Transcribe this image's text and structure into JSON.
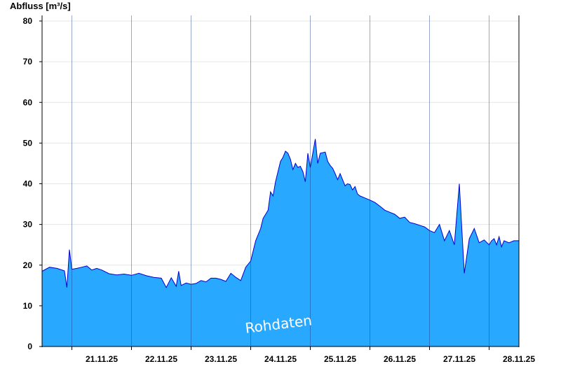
{
  "chart_data": {
    "type": "area",
    "ylabel": "Abfluss [m³/s]",
    "ylim": [
      0,
      80
    ],
    "y_ticks": [
      0,
      10,
      20,
      30,
      40,
      50,
      60,
      70,
      80
    ],
    "x_tick_labels": [
      "21.11.25",
      "22.11.25",
      "23.11.25",
      "24.11.25",
      "25.11.25",
      "26.11.25",
      "27.11.25",
      "28.11.25"
    ],
    "x_start": "20.11.25 12:00",
    "x_end": "28.11.25 12:00",
    "grid": "horizontal",
    "watermark": "Rohdaten",
    "colors": {
      "fill": "#29a8ff",
      "line": "#0000d0",
      "grid": "#e6e6e6",
      "day_line": "#1a3a8a"
    },
    "series": [
      {
        "x_hours_from_start": [
          0,
          3,
          6,
          9,
          10,
          11,
          12,
          14,
          16,
          18,
          20,
          22,
          24,
          27,
          30,
          33,
          36,
          39,
          42,
          45,
          48,
          50,
          52,
          54,
          55,
          56,
          58,
          60,
          62,
          64,
          66,
          68,
          70,
          72,
          74,
          76,
          78,
          80,
          82,
          84,
          86,
          88,
          89,
          90,
          91,
          92,
          93,
          94,
          96,
          97,
          98,
          99,
          100,
          101,
          102,
          103,
          104,
          105,
          106,
          107,
          108,
          110,
          111,
          112,
          114,
          115,
          116,
          117,
          118,
          119,
          120,
          122,
          123,
          124,
          125,
          126,
          127,
          128,
          130,
          132,
          134,
          136,
          138,
          140,
          142,
          144,
          146,
          148,
          150,
          152,
          154,
          156,
          158,
          160,
          162,
          164,
          166,
          168,
          170,
          172,
          174,
          176,
          178,
          180,
          181,
          182,
          183,
          184,
          185,
          186,
          188,
          190,
          192
        ],
        "values": [
          18.5,
          19.5,
          19.2,
          18.6,
          14.5,
          23.8,
          19.0,
          19.2,
          19.5,
          19.8,
          18.8,
          19.2,
          18.8,
          17.9,
          17.6,
          17.8,
          17.5,
          18.0,
          17.4,
          17.0,
          16.8,
          14.5,
          16.9,
          14.8,
          18.5,
          15.0,
          15.6,
          15.3,
          15.5,
          16.2,
          15.9,
          16.8,
          16.8,
          16.5,
          16.0,
          18.0,
          17.0,
          16.2,
          19.5,
          21.0,
          26.0,
          29.0,
          31.5,
          32.5,
          33.5,
          38.0,
          37.0,
          40.5,
          45.5,
          46.5,
          48.0,
          47.5,
          46.0,
          43.5,
          45.0,
          44.0,
          44.3,
          43.0,
          40.5,
          47.5,
          44.0,
          51.0,
          45.0,
          47.5,
          47.8,
          45.5,
          44.5,
          43.8,
          42.5,
          41.0,
          42.5,
          39.5,
          40.0,
          39.8,
          38.5,
          39.3,
          37.5,
          37.0,
          36.5,
          36.0,
          35.4,
          34.5,
          33.5,
          33.0,
          32.5,
          31.5,
          31.8,
          30.5,
          30.2,
          29.8,
          29.4,
          28.5,
          28.0,
          30.0,
          26.0,
          28.5,
          25.0,
          40.0,
          18.0,
          26.5,
          29.0,
          25.5,
          26.2,
          25.0,
          26.0,
          26.5,
          25.0,
          27.0,
          24.5,
          26.0,
          25.5,
          26.0,
          26.0
        ]
      }
    ]
  }
}
